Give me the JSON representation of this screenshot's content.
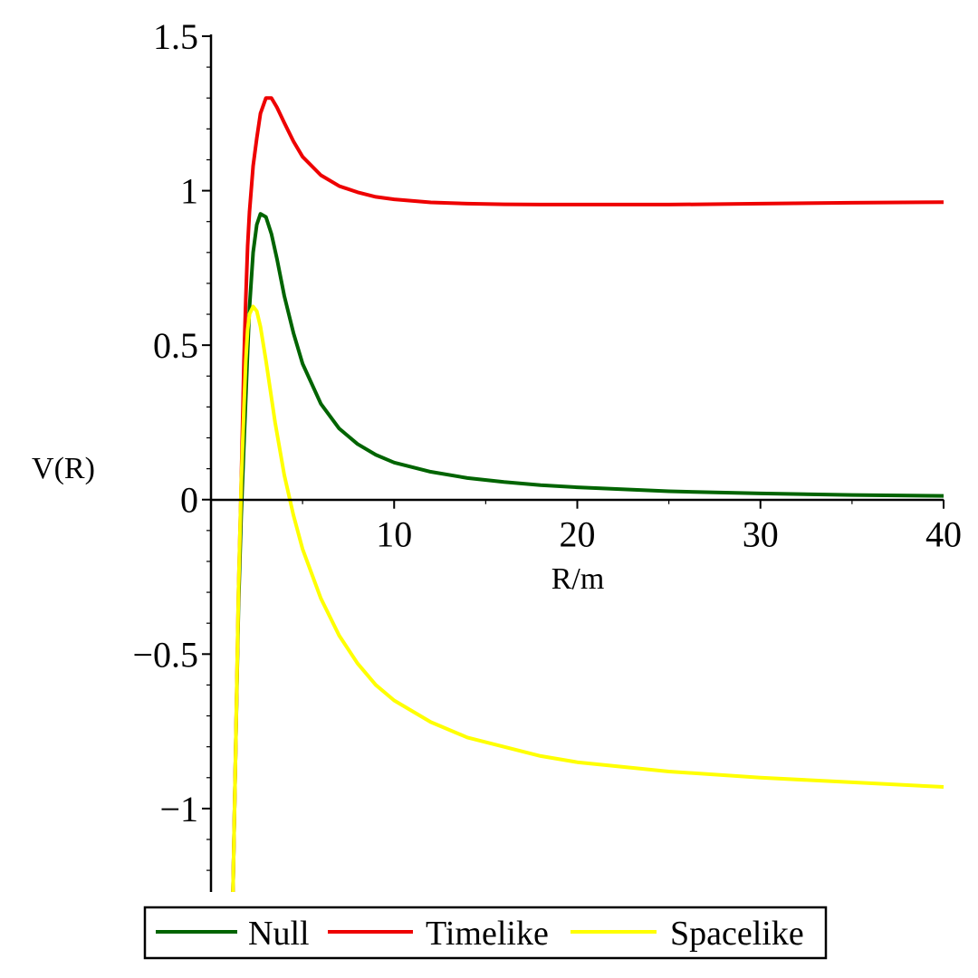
{
  "chart_data": {
    "type": "line",
    "title": "",
    "xlabel": "R/m",
    "ylabel": "V(R)",
    "xlim": [
      0,
      40
    ],
    "ylim": [
      -1.27,
      1.5
    ],
    "x_ticks": [
      10,
      20,
      30,
      40
    ],
    "x_tick_labels": [
      "10",
      "20",
      "30",
      "40"
    ],
    "y_ticks": [
      -1,
      -0.5,
      0,
      0.5,
      1,
      1.5
    ],
    "y_tick_labels": [
      "−1",
      "−0.5",
      "0",
      "0.5",
      "1",
      "1.5"
    ],
    "grid": false,
    "legend_position": "bottom",
    "series": [
      {
        "name": "Null",
        "color": "#006400",
        "x": [
          1.2,
          1.35,
          1.5,
          1.65,
          1.8,
          1.9,
          2.0,
          2.1,
          2.3,
          2.5,
          2.7,
          3.0,
          3.3,
          3.6,
          4.0,
          4.5,
          5.0,
          6.0,
          7.0,
          8.0,
          9.0,
          10.0,
          12.0,
          14.0,
          16.0,
          18.0,
          20.0,
          25.0,
          30.0,
          35.0,
          40.0
        ],
        "values": [
          -1.27,
          -0.8,
          -0.35,
          -0.05,
          0.18,
          0.33,
          0.48,
          0.62,
          0.8,
          0.89,
          0.925,
          0.915,
          0.86,
          0.78,
          0.66,
          0.54,
          0.44,
          0.31,
          0.23,
          0.18,
          0.145,
          0.12,
          0.09,
          0.07,
          0.057,
          0.047,
          0.04,
          0.027,
          0.02,
          0.015,
          0.012
        ]
      },
      {
        "name": "Timelike",
        "color": "#ee0000",
        "x": [
          1.2,
          1.35,
          1.5,
          1.65,
          1.8,
          1.9,
          2.0,
          2.1,
          2.3,
          2.5,
          2.7,
          3.0,
          3.3,
          3.6,
          4.0,
          4.5,
          5.0,
          6.0,
          7.0,
          8.0,
          9.0,
          10.0,
          12.0,
          14.0,
          16.0,
          18.0,
          20.0,
          25.0,
          30.0,
          35.0,
          40.0
        ],
        "values": [
          -1.27,
          -0.8,
          -0.3,
          0.05,
          0.45,
          0.65,
          0.82,
          0.93,
          1.08,
          1.17,
          1.25,
          1.3,
          1.3,
          1.27,
          1.22,
          1.16,
          1.11,
          1.05,
          1.015,
          0.995,
          0.98,
          0.972,
          0.962,
          0.958,
          0.956,
          0.955,
          0.955,
          0.955,
          0.958,
          0.961,
          0.963
        ]
      },
      {
        "name": "Spacelike",
        "color": "#ffff00",
        "x": [
          1.2,
          1.35,
          1.5,
          1.65,
          1.8,
          1.9,
          2.0,
          2.1,
          2.3,
          2.5,
          2.7,
          3.0,
          3.5,
          4.0,
          4.5,
          5.0,
          6.0,
          7.0,
          8.0,
          9.0,
          10.0,
          12.0,
          14.0,
          16.0,
          18.0,
          20.0,
          25.0,
          30.0,
          35.0,
          40.0
        ],
        "values": [
          -1.27,
          -0.8,
          -0.3,
          0.05,
          0.3,
          0.45,
          0.55,
          0.6,
          0.625,
          0.61,
          0.56,
          0.45,
          0.25,
          0.08,
          -0.05,
          -0.16,
          -0.32,
          -0.44,
          -0.53,
          -0.6,
          -0.65,
          -0.72,
          -0.77,
          -0.8,
          -0.83,
          -0.85,
          -0.88,
          -0.9,
          -0.915,
          -0.93
        ]
      }
    ]
  }
}
